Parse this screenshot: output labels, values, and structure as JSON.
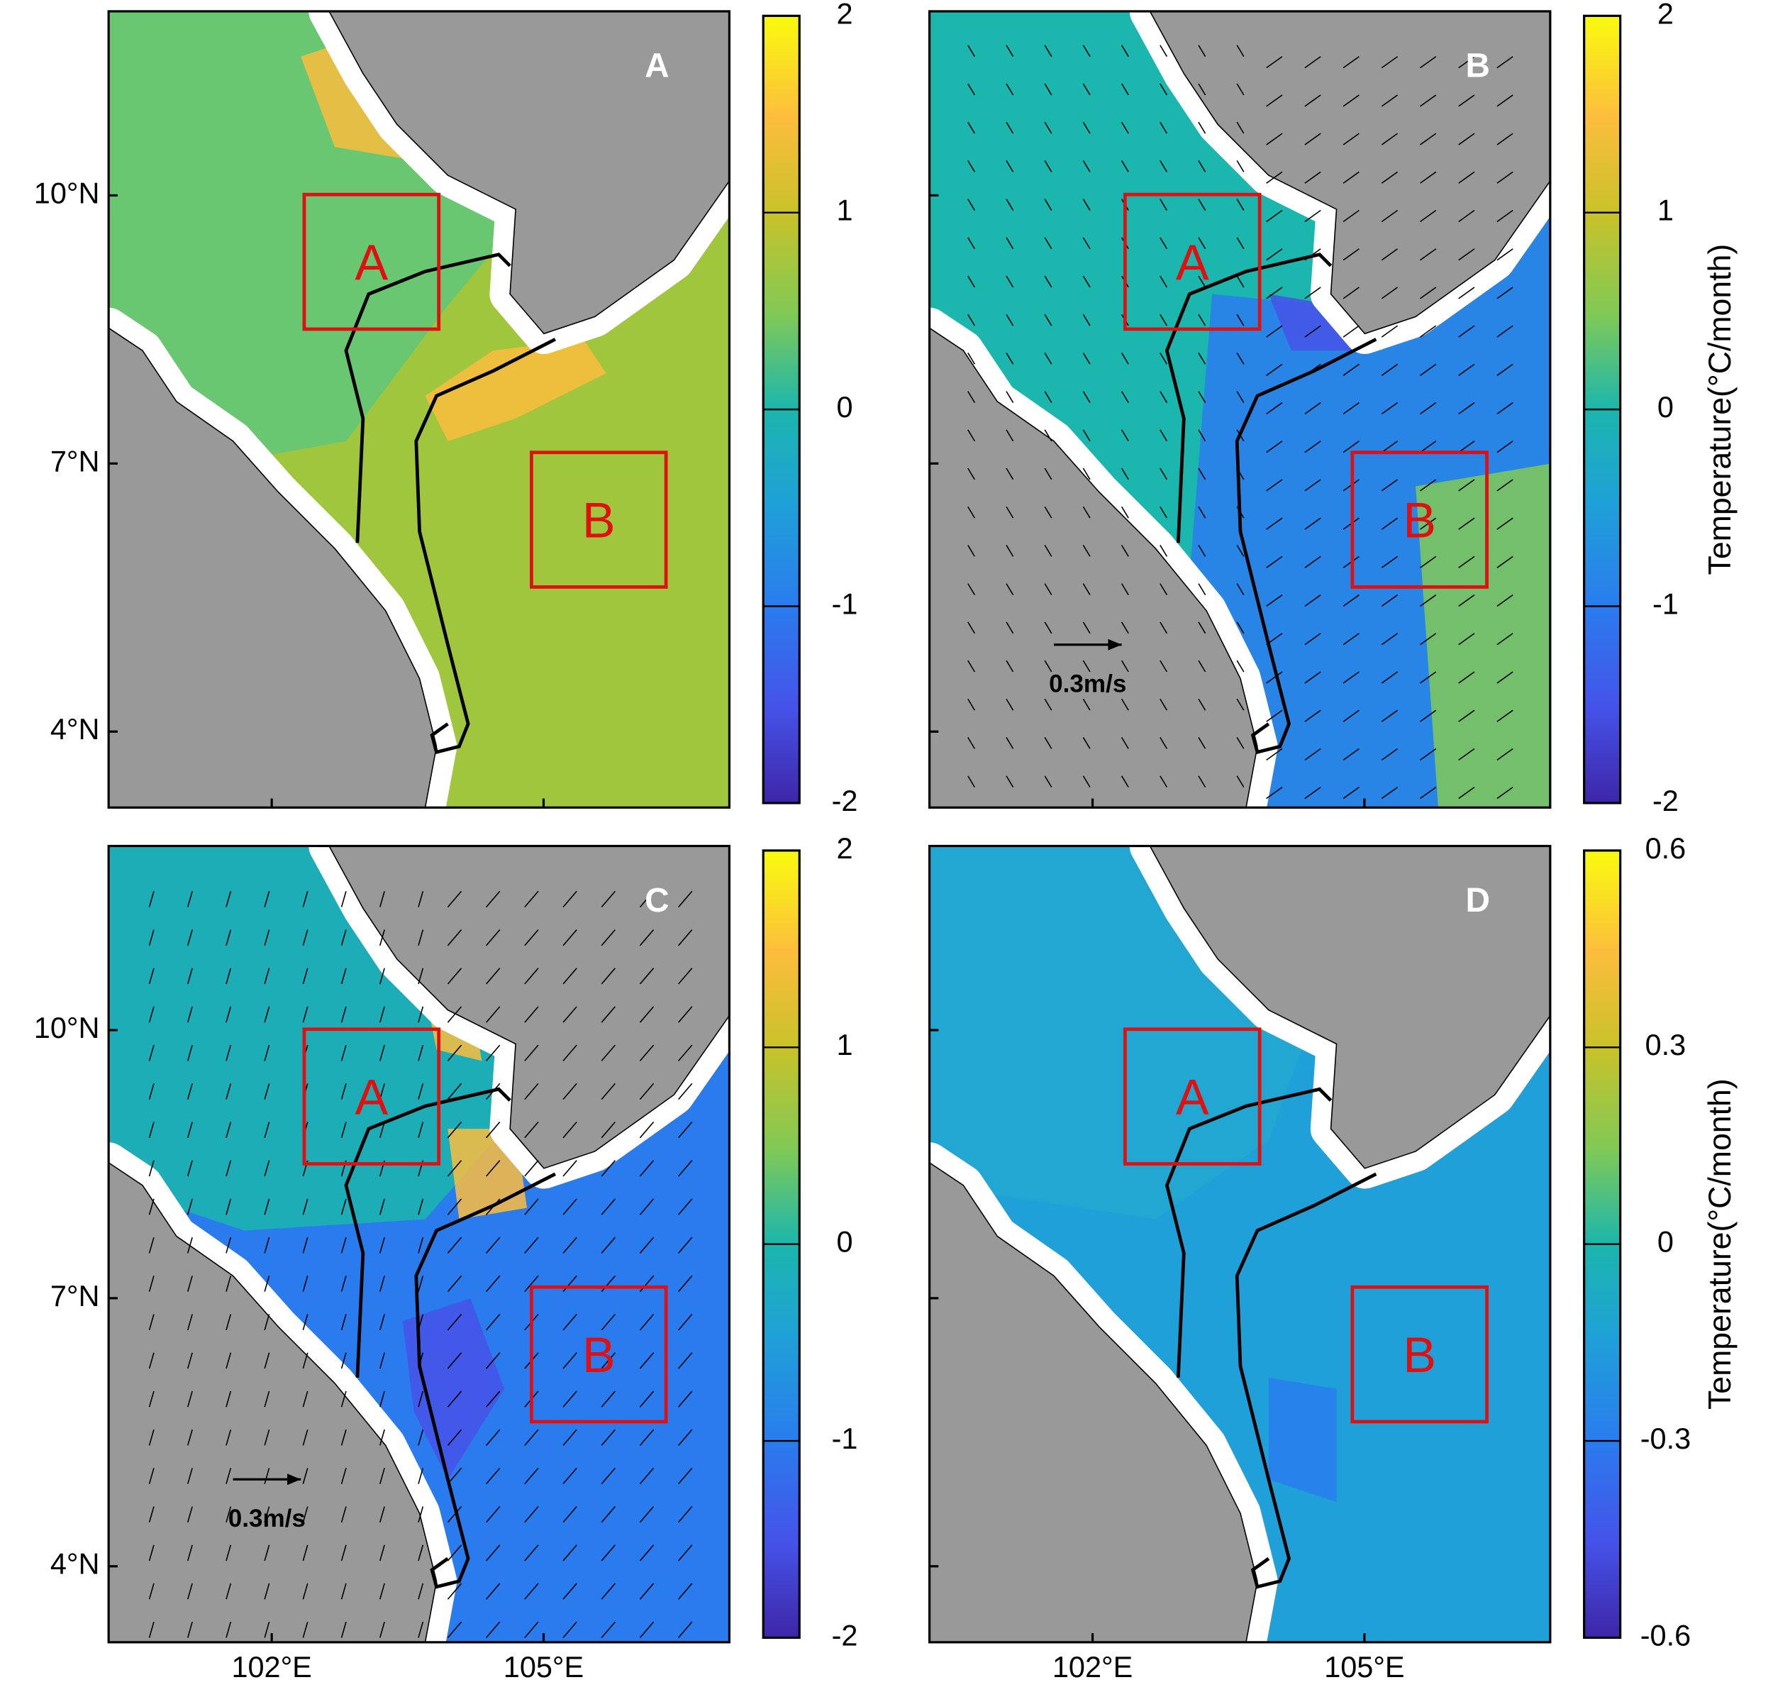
{
  "map": {
    "xlim": [
      100.2,
      107.05
    ],
    "ylim": [
      3.15,
      12.06
    ],
    "lat_ticks": [
      {
        "value": 10,
        "label": "10°N"
      },
      {
        "value": 7,
        "label": "7°N"
      },
      {
        "value": 4,
        "label": "4°N"
      }
    ],
    "lon_ticks": [
      {
        "value": 102,
        "label": "102°E"
      },
      {
        "value": 105,
        "label": "105°E"
      }
    ],
    "region_labels": [
      "A",
      "B"
    ]
  },
  "panels": [
    {
      "label": "A",
      "clim": [
        -2,
        2
      ],
      "cticks": [
        2,
        1,
        0,
        -1,
        -2
      ]
    },
    {
      "label": "B",
      "clim": [
        -2,
        2
      ],
      "cticks": [
        2,
        1,
        0,
        -1,
        -2
      ],
      "colorbar_label": "Temperature(°C/month)",
      "scale_label": "0.3m/s"
    },
    {
      "label": "C",
      "clim": [
        -2,
        2
      ],
      "cticks": [
        2,
        1,
        0,
        -1,
        -2
      ],
      "scale_label": "0.3m/s"
    },
    {
      "label": "D",
      "clim": [
        -0.6,
        0.6
      ],
      "cticks": [
        0.6,
        0.3,
        0,
        -0.3,
        -0.6
      ],
      "colorbar_label": "Temperature(°C/month)"
    }
  ]
}
